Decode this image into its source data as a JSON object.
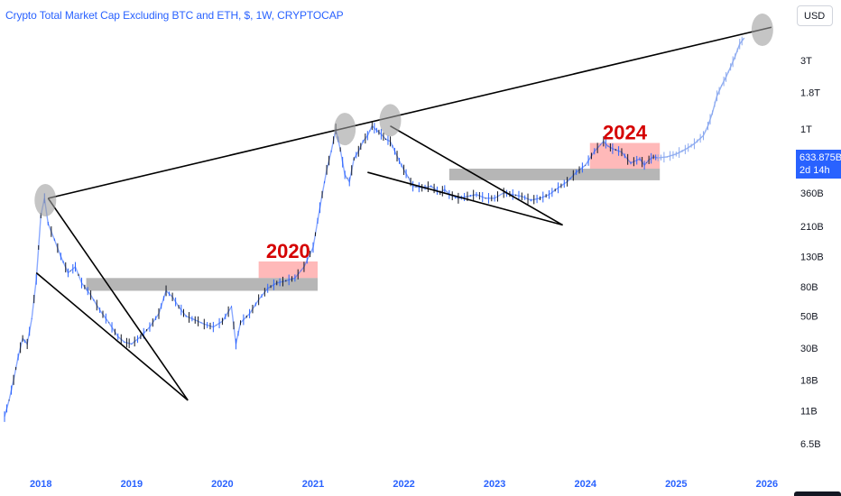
{
  "header": {
    "title": "Crypto Total Market Cap Excluding BTC and ETH, $, 1W, CRYPTOCAP",
    "currency": "USD"
  },
  "price_tag": {
    "value": "633.875B",
    "countdown": "2d 14h"
  },
  "chart_data": {
    "type": "line",
    "title": "Crypto Total Market Cap Excluding BTC and ETH, $, 1W, CRYPTOCAP",
    "y_scale": "log",
    "ylim": [
      5000000000,
      5500000000000
    ],
    "xlim": [
      2017.55,
      2026.2
    ],
    "y_ticks": [
      {
        "label": "3T",
        "value": 3000000000000
      },
      {
        "label": "1.8T",
        "value": 1800000000000
      },
      {
        "label": "1T",
        "value": 1000000000000
      },
      {
        "label": "360B",
        "value": 360000000000
      },
      {
        "label": "210B",
        "value": 210000000000
      },
      {
        "label": "130B",
        "value": 130000000000
      },
      {
        "label": "80B",
        "value": 80000000000
      },
      {
        "label": "50B",
        "value": 50000000000
      },
      {
        "label": "30B",
        "value": 30000000000
      },
      {
        "label": "18B",
        "value": 18000000000
      },
      {
        "label": "11B",
        "value": 11000000000
      },
      {
        "label": "6.5B",
        "value": 6500000000
      }
    ],
    "x_ticks": [
      {
        "label": "2018",
        "value": 2018
      },
      {
        "label": "2019",
        "value": 2019
      },
      {
        "label": "2020",
        "value": 2020
      },
      {
        "label": "2021",
        "value": 2021
      },
      {
        "label": "2022",
        "value": 2022
      },
      {
        "label": "2023",
        "value": 2023
      },
      {
        "label": "2024",
        "value": 2024
      },
      {
        "label": "2025",
        "value": 2025
      },
      {
        "label": "2026",
        "value": 2026
      }
    ],
    "series": [
      {
        "x": [
          2017.6,
          2017.65,
          2017.7,
          2017.75,
          2017.8,
          2017.85,
          2017.9,
          2017.95,
          2018.0,
          2018.04,
          2018.08,
          2018.15,
          2018.22,
          2018.3,
          2018.38,
          2018.45,
          2018.55,
          2018.65,
          2018.75,
          2018.85,
          2018.92,
          2019.0,
          2019.1,
          2019.2,
          2019.3,
          2019.38,
          2019.45,
          2019.52,
          2019.6,
          2019.7,
          2019.8,
          2019.9,
          2020.0,
          2020.1,
          2020.15,
          2020.2,
          2020.3,
          2020.4,
          2020.5,
          2020.6,
          2020.7,
          2020.8,
          2020.9,
          2021.0,
          2021.05,
          2021.1,
          2021.15,
          2021.2,
          2021.25,
          2021.3,
          2021.35,
          2021.4,
          2021.45,
          2021.5,
          2021.55,
          2021.6,
          2021.65,
          2021.7,
          2021.75,
          2021.8,
          2021.85,
          2021.9,
          2021.95,
          2022.0,
          2022.05,
          2022.1,
          2022.2,
          2022.3,
          2022.4,
          2022.45,
          2022.5,
          2022.6,
          2022.7,
          2022.8,
          2022.9,
          2023.0,
          2023.1,
          2023.2,
          2023.3,
          2023.4,
          2023.5,
          2023.6,
          2023.7,
          2023.8,
          2023.9,
          2024.0,
          2024.1,
          2024.2,
          2024.25,
          2024.3,
          2024.4,
          2024.5,
          2024.6,
          2024.65,
          2024.7,
          2024.75,
          2024.8
        ],
        "values": [
          10000000000,
          13000000000,
          18000000000,
          26000000000,
          35000000000,
          32000000000,
          48000000000,
          90000000000,
          250000000000,
          330000000000,
          220000000000,
          170000000000,
          130000000000,
          100000000000,
          110000000000,
          85000000000,
          70000000000,
          55000000000,
          45000000000,
          36000000000,
          33000000000,
          32000000000,
          36000000000,
          42000000000,
          52000000000,
          75000000000,
          68000000000,
          58000000000,
          50000000000,
          47000000000,
          44000000000,
          42000000000,
          46000000000,
          58000000000,
          32000000000,
          45000000000,
          52000000000,
          65000000000,
          78000000000,
          85000000000,
          88000000000,
          92000000000,
          110000000000,
          150000000000,
          230000000000,
          350000000000,
          520000000000,
          700000000000,
          1000000000000,
          720000000000,
          480000000000,
          430000000000,
          620000000000,
          700000000000,
          820000000000,
          900000000000,
          1050000000000,
          980000000000,
          920000000000,
          850000000000,
          820000000000,
          700000000000,
          600000000000,
          520000000000,
          460000000000,
          400000000000,
          390000000000,
          400000000000,
          360000000000,
          380000000000,
          350000000000,
          330000000000,
          340000000000,
          350000000000,
          330000000000,
          330000000000,
          360000000000,
          350000000000,
          340000000000,
          320000000000,
          330000000000,
          350000000000,
          390000000000,
          430000000000,
          500000000000,
          560000000000,
          700000000000,
          820000000000,
          760000000000,
          730000000000,
          690000000000,
          580000000000,
          620000000000,
          560000000000,
          610000000000,
          640000000000,
          630000000000
        ]
      },
      {
        "x": [
          2024.8,
          2024.9,
          2025.0,
          2025.1,
          2025.2,
          2025.3,
          2025.35,
          2025.4,
          2025.45,
          2025.5,
          2025.55,
          2025.6,
          2025.65,
          2025.7,
          2025.75
        ],
        "values": [
          630000000000,
          640000000000,
          670000000000,
          720000000000,
          790000000000,
          900000000000,
          1050000000000,
          1300000000000,
          1700000000000,
          2000000000000,
          2300000000000,
          2700000000000,
          3200000000000,
          3900000000000,
          4300000000000
        ]
      }
    ],
    "annotations": {
      "zones": [
        {
          "label": "2020",
          "x0": 2020.4,
          "x1": 2021.05,
          "y0": 92000000000,
          "y1": 120000000000
        },
        {
          "label": "2024",
          "x0": 2024.05,
          "x1": 2024.82,
          "y0": 530000000000,
          "y1": 800000000000
        }
      ],
      "support_bands": [
        {
          "x0": 2018.5,
          "x1": 2021.05,
          "y0": 75000000000,
          "y1": 92000000000
        },
        {
          "x0": 2022.5,
          "x1": 2024.82,
          "y0": 440000000000,
          "y1": 530000000000
        }
      ],
      "lines": [
        {
          "x0": 2018.08,
          "y0": 330000000000,
          "x1": 2026.05,
          "y1": 5100000000000
        },
        {
          "x0": 2018.08,
          "y0": 330000000000,
          "x1": 2019.62,
          "y1": 13000000000
        },
        {
          "x0": 2017.95,
          "y0": 100000000000,
          "x1": 2019.62,
          "y1": 13000000000
        },
        {
          "x0": 2021.85,
          "y0": 1050000000000,
          "x1": 2023.75,
          "y1": 215000000000
        },
        {
          "x0": 2021.6,
          "y0": 500000000000,
          "x1": 2023.75,
          "y1": 215000000000
        }
      ],
      "circles": [
        {
          "x": 2018.05,
          "y": 320000000000
        },
        {
          "x": 2021.35,
          "y": 1000000000000
        },
        {
          "x": 2021.85,
          "y": 1150000000000
        },
        {
          "x": 2025.95,
          "y": 4900000000000
        }
      ]
    }
  }
}
